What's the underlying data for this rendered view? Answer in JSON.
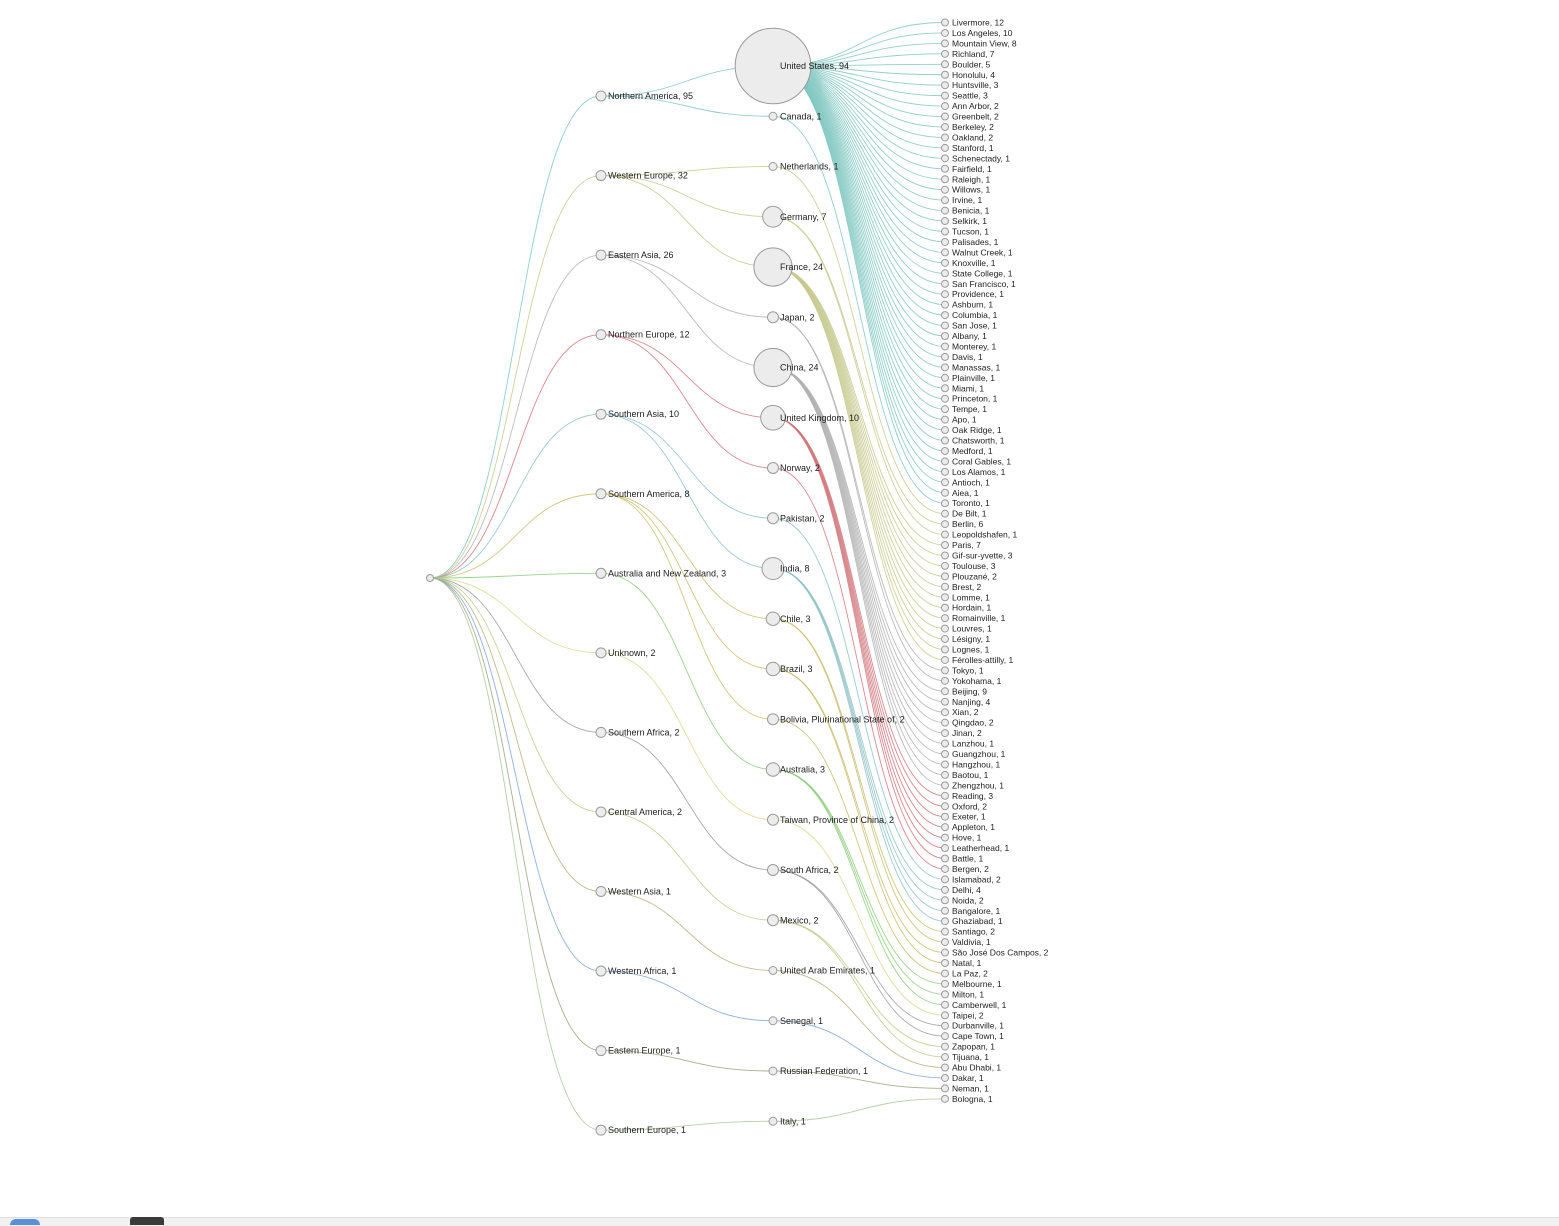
{
  "chart_data": {
    "type": "tree",
    "title": "",
    "regions": [
      {
        "label": "Northern America, 95",
        "color": "#7fc7c0",
        "countries": [
          {
            "label": "United States, 94",
            "cities": [
              "Livermore, 12",
              "Los Angeles, 10",
              "Mountain View, 8",
              "Richland, 7",
              "Boulder, 5",
              "Honolulu, 4",
              "Huntsville, 3",
              "Seattle, 3",
              "Ann Arbor, 2",
              "Greenbelt, 2",
              "Berkeley, 2",
              "Oakland, 2",
              "Stanford, 1",
              "Schenectady, 1",
              "Fairfield, 1",
              "Raleigh, 1",
              "Willows, 1",
              "Irvine, 1",
              "Benicia, 1",
              "Selkirk, 1",
              "Tucson, 1",
              "Palisades, 1",
              "Walnut Creek, 1",
              "Knoxville, 1",
              "State College, 1",
              "San Francisco, 1",
              "Providence, 1",
              "Ashburn, 1",
              "Columbia, 1",
              "San Jose, 1",
              "Albany, 1",
              "Monterey, 1",
              "Davis, 1",
              "Manassas, 1",
              "Plainville, 1",
              "Miami, 1",
              "Princeton, 1",
              "Tempe, 1",
              "Apo, 1",
              "Oak Ridge, 1",
              "Chatsworth, 1",
              "Medford, 1",
              "Coral Gables, 1",
              "Los Alamos, 1",
              "Antioch, 1",
              "Aiea, 1"
            ]
          },
          {
            "label": "Canada, 1",
            "cities": [
              "Toronto, 1"
            ]
          }
        ]
      },
      {
        "label": "Western Europe, 32",
        "color": "#c5c98c",
        "countries": [
          {
            "label": "Netherlands, 1",
            "cities": [
              "De Bilt, 1"
            ]
          },
          {
            "label": "Germany, 7",
            "cities": [
              "Berlin, 6",
              "Leopoldshafen, 1"
            ]
          },
          {
            "label": "France, 24",
            "cities": [
              "Paris, 7",
              "Gif-sur-yvette, 3",
              "Toulouse, 3",
              "Plouzané, 2",
              "Brest, 2",
              "Lomme, 1",
              "Hordain, 1",
              "Romainville, 1",
              "Louvres, 1",
              "Lésigny, 1",
              "Lognes, 1",
              "Férolles-attilly, 1"
            ]
          }
        ]
      },
      {
        "label": "Eastern Asia, 26",
        "color": "#b0b0b0",
        "countries": [
          {
            "label": "Japan, 2",
            "cities": [
              "Tokyo, 1",
              "Yokohama, 1"
            ]
          },
          {
            "label": "China, 24",
            "cities": [
              "Beijing, 9",
              "Nanjing, 4",
              "Xian, 2",
              "Qingdao, 2",
              "Jinan, 2",
              "Lanzhou, 1",
              "Guangzhou, 1",
              "Hangzhou, 1",
              "Baotou, 1",
              "Zhengzhou, 1"
            ]
          }
        ]
      },
      {
        "label": "Northern Europe, 12",
        "color": "#d1767b",
        "countries": [
          {
            "label": "United Kingdom, 10",
            "cities": [
              "Reading, 3",
              "Oxford, 2",
              "Exeter, 1",
              "Appleton, 1",
              "Hove, 1",
              "Leatherhead, 1",
              "Battle, 1"
            ]
          },
          {
            "label": "Norway, 2",
            "cities": [
              "Bergen, 2"
            ]
          }
        ]
      },
      {
        "label": "Southern Asia, 10",
        "color": "#8cc1c4",
        "countries": [
          {
            "label": "Pakistan, 2",
            "cities": [
              "Islamabad, 2"
            ]
          },
          {
            "label": "India, 8",
            "cities": [
              "Delhi, 4",
              "Noida, 2",
              "Bangalore, 1",
              "Ghaziabad, 1"
            ]
          }
        ]
      },
      {
        "label": "Southern America, 8",
        "color": "#c8bd6c",
        "countries": [
          {
            "label": "Chile, 3",
            "cities": [
              "Santiago, 2",
              "Valdivia, 1"
            ]
          },
          {
            "label": "Brazil, 3",
            "cities": [
              "São José Dos Campos, 2",
              "Natal, 1"
            ]
          },
          {
            "label": "Bolivia, Plurinational State of, 2",
            "cities": [
              "La Paz, 2"
            ]
          }
        ]
      },
      {
        "label": "Australia and New Zealand, 3",
        "color": "#8ccc7a",
        "countries": [
          {
            "label": "Australia, 3",
            "cities": [
              "Melbourne, 1",
              "Milton, 1",
              "Camberwell, 1"
            ]
          }
        ]
      },
      {
        "label": "Unknown, 2",
        "color": "#d7d98e",
        "countries": [
          {
            "label": "Taiwan, Province of China, 2",
            "cities": [
              "Taipei, 2"
            ]
          }
        ]
      },
      {
        "label": "Southern Africa, 2",
        "color": "#9a9a9a",
        "countries": [
          {
            "label": "South Africa, 2",
            "cities": [
              "Durbanville, 1",
              "Cape Town, 1"
            ]
          }
        ]
      },
      {
        "label": "Central America, 2",
        "color": "#bccb8b",
        "countries": [
          {
            "label": "Mexico, 2",
            "cities": [
              "Zapopan, 1",
              "Tijuana, 1"
            ]
          }
        ]
      },
      {
        "label": "Western Asia, 1",
        "color": "#b5b07a",
        "countries": [
          {
            "label": "United Arab Emirates, 1",
            "cities": [
              "Abu Dhabi, 1"
            ]
          }
        ]
      },
      {
        "label": "Western Africa, 1",
        "color": "#7aa3d8",
        "countries": [
          {
            "label": "Senegal, 1",
            "cities": [
              "Dakar, 1"
            ]
          }
        ]
      },
      {
        "label": "Eastern Europe, 1",
        "color": "#9aa07a",
        "countries": [
          {
            "label": "Russian Federation, 1",
            "cities": [
              "Neman, 1"
            ]
          }
        ]
      },
      {
        "label": "Southern Europe, 1",
        "color": "#a9c79a",
        "countries": [
          {
            "label": "Italy, 1",
            "cities": [
              "Bologna, 1"
            ]
          }
        ]
      }
    ]
  }
}
